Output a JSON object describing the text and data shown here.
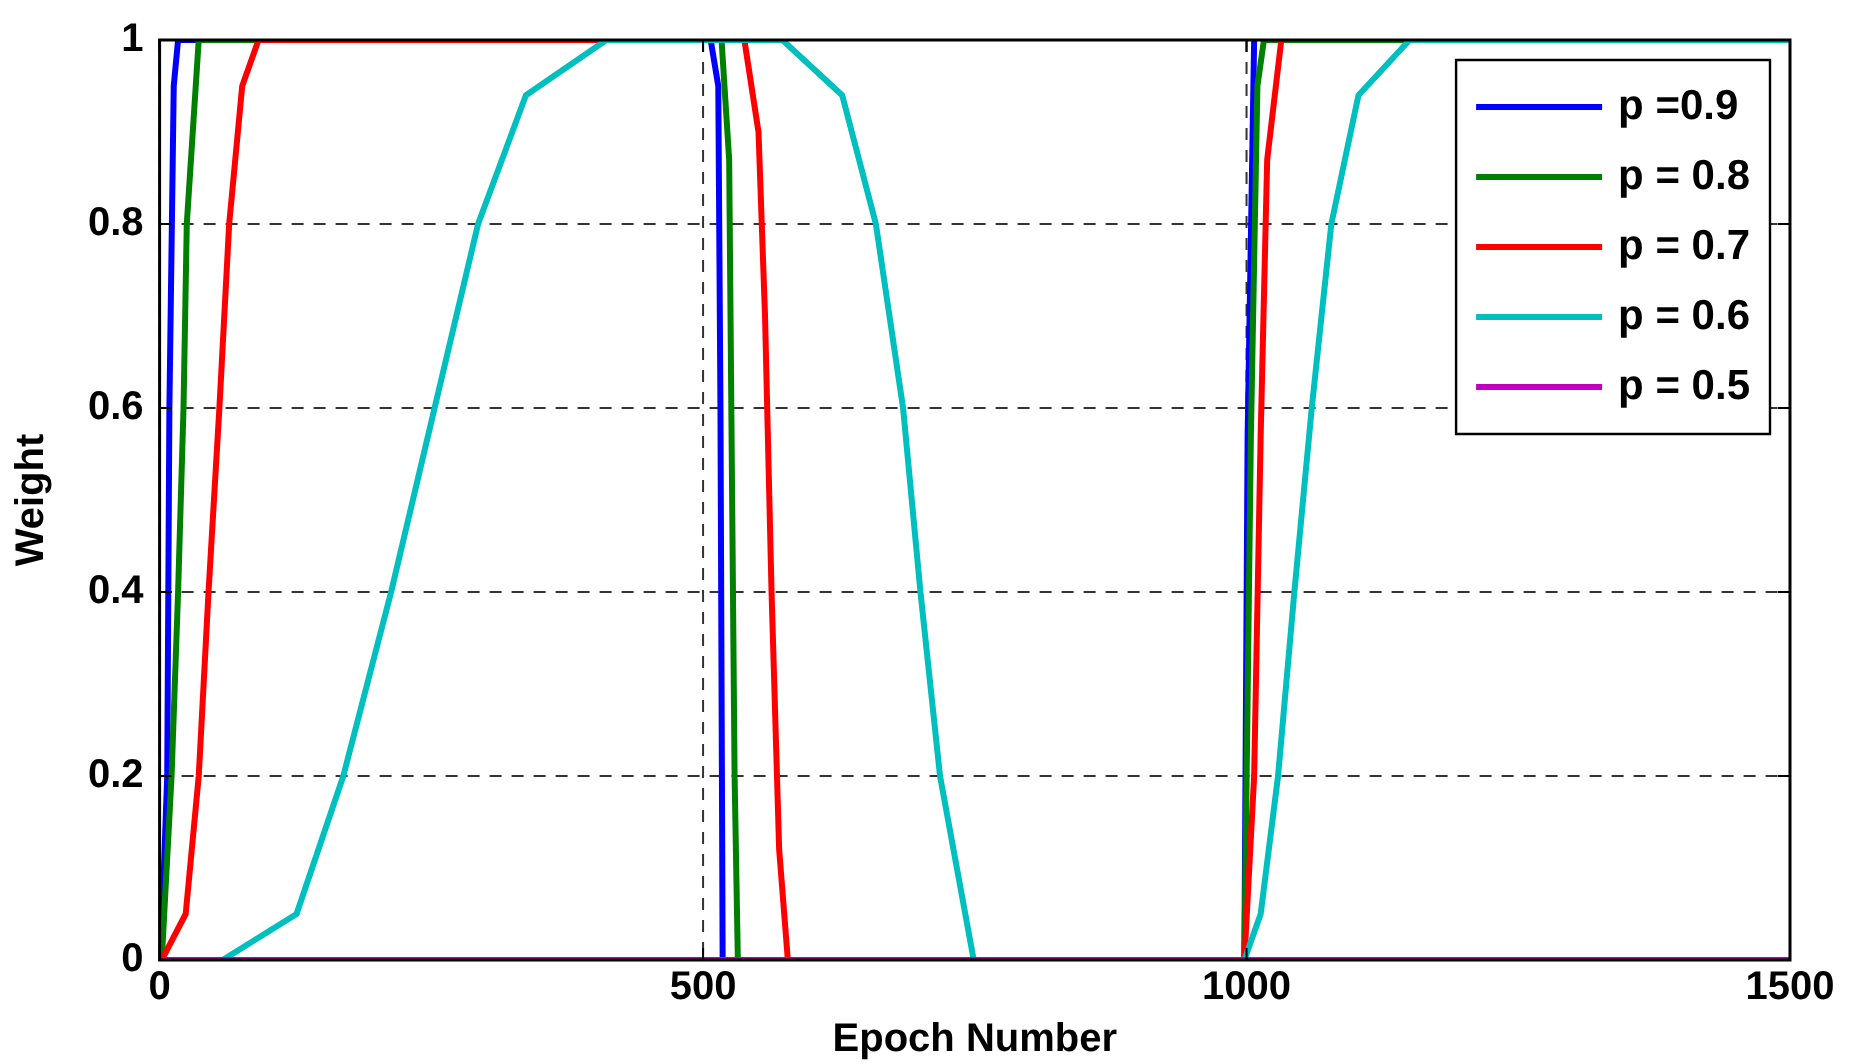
{
  "chart_data": {
    "type": "line",
    "xlabel": "Epoch Number",
    "ylabel": "Weight",
    "xlim": [
      0,
      1500
    ],
    "xticks": [
      0,
      500,
      1000,
      1500
    ],
    "ylim": [
      0,
      1
    ],
    "yticks": [
      0,
      0.2,
      0.4,
      0.6,
      0.8,
      1
    ],
    "grid": true,
    "legend": "top right",
    "marker": "none",
    "line_style": "solid",
    "series": [
      {
        "name": "p =0.9",
        "color": "#0000ff",
        "x": [
          0,
          1,
          7,
          9,
          13,
          17,
          507,
          514,
          516,
          518,
          998,
          1001,
          1007
        ],
        "values": [
          0,
          0,
          0.2,
          0.6,
          0.95,
          1,
          1,
          0.95,
          0.6,
          0,
          0,
          0.57,
          1
        ]
      },
      {
        "name": "p = 0.8",
        "color": "#008000",
        "x": [
          0,
          2,
          11,
          17,
          22,
          25,
          36,
          517,
          524,
          526,
          529,
          532,
          998,
          1004,
          1010,
          1016,
          1500
        ],
        "values": [
          0,
          0,
          0.2,
          0.4,
          0.6,
          0.8,
          1,
          1,
          0.87,
          0.6,
          0.2,
          0,
          0,
          0.57,
          0.95,
          1,
          1
        ]
      },
      {
        "name": "p = 0.7",
        "color": "#ff0000",
        "x": [
          0,
          2,
          24,
          36,
          45,
          55,
          64,
          76,
          91,
          538,
          551,
          557,
          563,
          570,
          578,
          998,
          1007,
          1013,
          1019,
          1032
        ],
        "values": [
          0,
          0,
          0.05,
          0.2,
          0.4,
          0.6,
          0.8,
          0.95,
          1,
          1,
          0.9,
          0.7,
          0.4,
          0.12,
          0,
          0,
          0.2,
          0.57,
          0.87,
          1
        ]
      },
      {
        "name": "p = 0.6",
        "color": "#00bfbf",
        "x": [
          0,
          58,
          126,
          169,
          213,
          253,
          293,
          337,
          411,
          573,
          628,
          659,
          684,
          700,
          718,
          749,
          998,
          1013,
          1029,
          1044,
          1060,
          1078,
          1103,
          1150,
          1500
        ],
        "values": [
          0,
          0,
          0.05,
          0.2,
          0.4,
          0.6,
          0.8,
          0.94,
          1,
          1,
          0.94,
          0.8,
          0.6,
          0.4,
          0.2,
          0,
          0,
          0.05,
          0.2,
          0.4,
          0.6,
          0.8,
          0.94,
          1,
          1
        ]
      },
      {
        "name": "p = 0.5",
        "color": "#bf00bf",
        "x": [
          0,
          1500
        ],
        "values": [
          0,
          0
        ]
      }
    ]
  }
}
